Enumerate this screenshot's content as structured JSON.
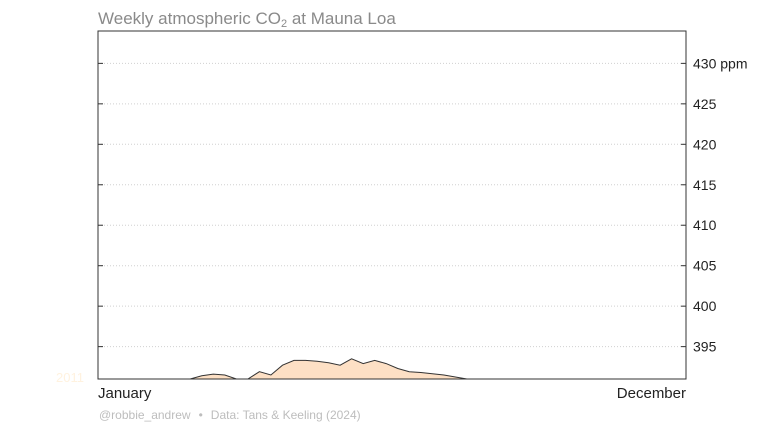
{
  "title": {
    "prefix": "Weekly atmospheric CO",
    "subscript": "2",
    "suffix": " at Mauna Loa"
  },
  "footer": {
    "author": "@robbie_andrew",
    "separator": "•",
    "source": "Data: Tans & Keeling (2024)"
  },
  "colors": {
    "fill": "#fde0c5",
    "line": "#333333",
    "grid": "#d0d0d0",
    "frame": "#333333",
    "year_label": "#fff2df"
  },
  "chart_data": {
    "type": "area",
    "title": "Weekly atmospheric CO2 at Mauna Loa",
    "x_axis": {
      "start_label": "January",
      "end_label": "December"
    },
    "y_axis": {
      "min": 391,
      "max": 434,
      "position": "right",
      "ticks": [
        395,
        400,
        405,
        410,
        415,
        420,
        425,
        430
      ],
      "tick_labels": [
        "395",
        "400",
        "405",
        "410",
        "415",
        "420",
        "425",
        "430 ppm"
      ]
    },
    "grid": "horizontal dotted",
    "series": [
      {
        "year_label": "2011",
        "x_week": [
          0,
          4,
          8,
          9,
          10,
          11,
          12,
          13,
          14,
          15,
          16,
          17,
          18,
          19,
          20,
          21,
          22,
          23,
          24,
          25,
          26,
          27,
          28,
          30,
          32,
          35,
          51
        ],
        "y_ppm": [
          391.0,
          391.0,
          391.0,
          391.4,
          391.6,
          391.5,
          391.0,
          391.0,
          391.9,
          391.5,
          392.7,
          393.3,
          393.3,
          393.2,
          393.0,
          392.7,
          393.5,
          392.9,
          393.3,
          392.9,
          392.3,
          391.9,
          391.8,
          391.5,
          391.0,
          391.0,
          391.0
        ]
      }
    ]
  }
}
